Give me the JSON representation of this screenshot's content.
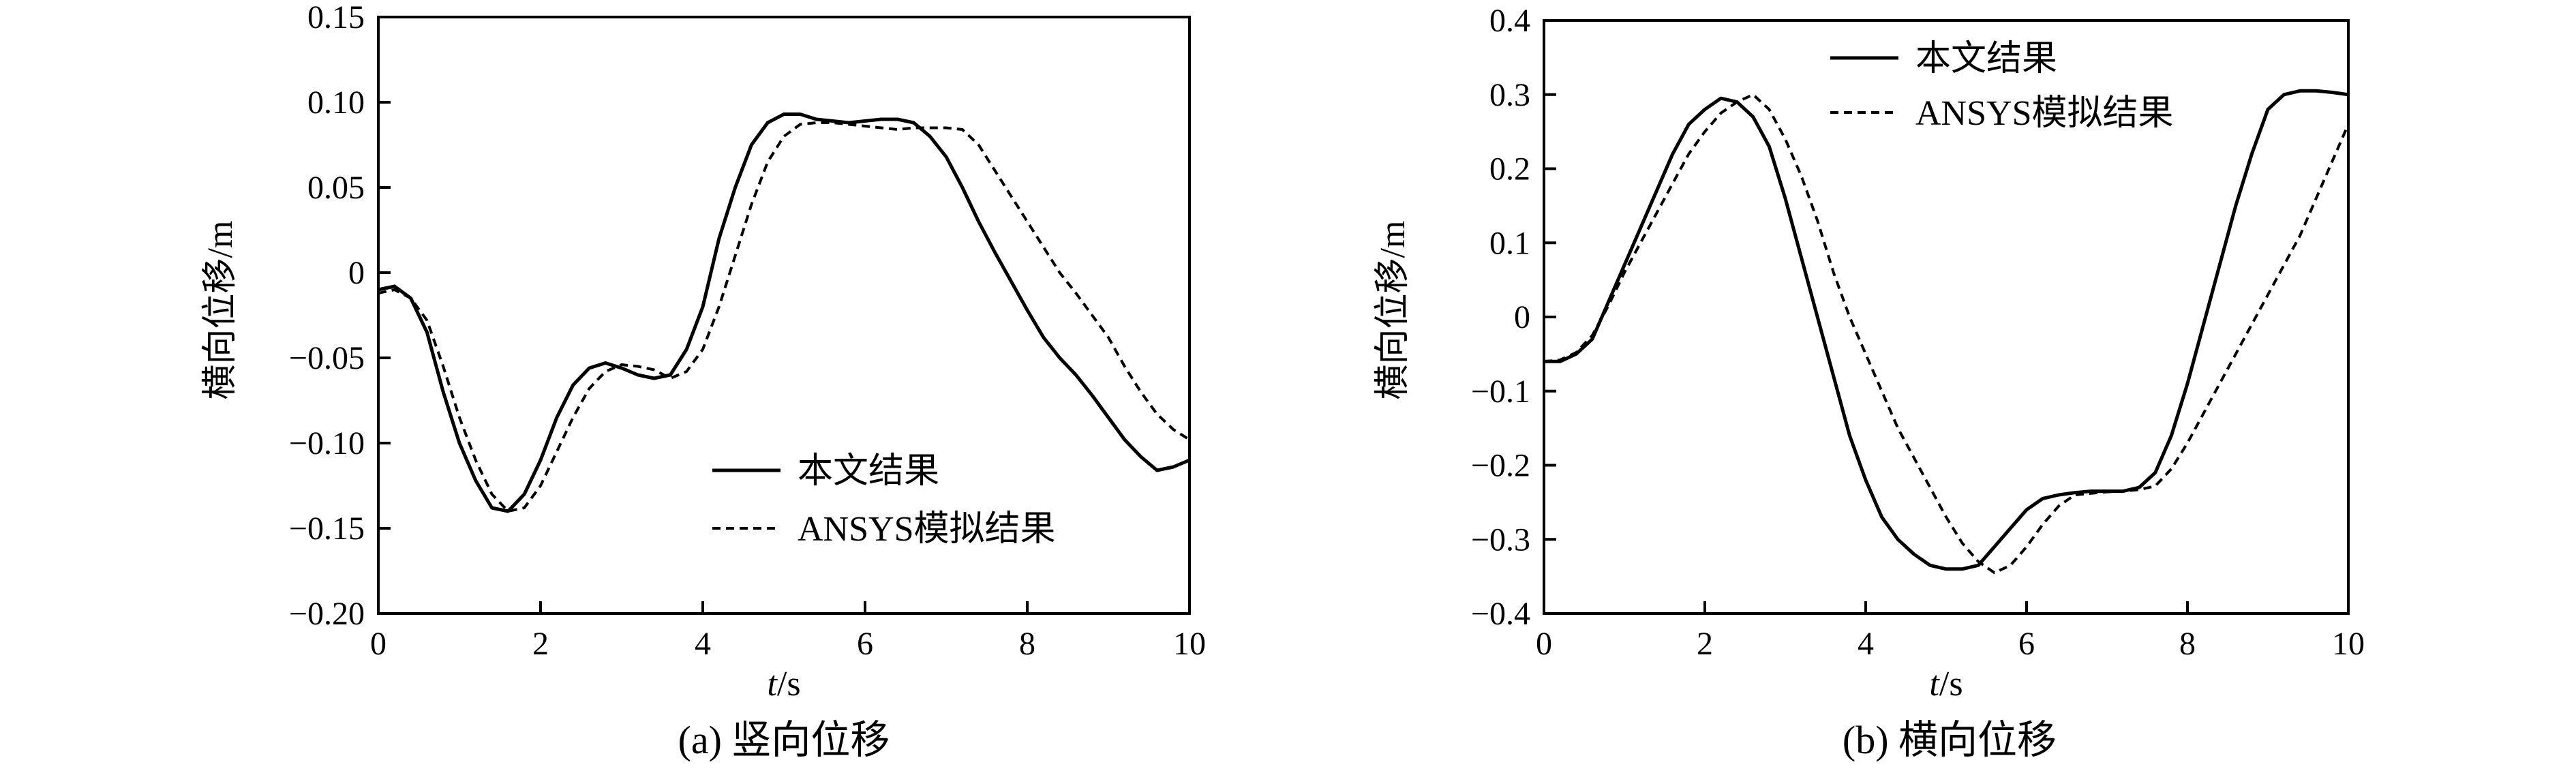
{
  "chart_data": [
    {
      "type": "line",
      "caption": "(a) 竖向位移",
      "xlabel_italic": "t",
      "xlabel_unit": "/s",
      "ylabel": "横向位移/m",
      "xlim": [
        0,
        10
      ],
      "ylim": [
        -0.2,
        0.15
      ],
      "xticks": [
        0,
        2,
        4,
        6,
        8,
        10
      ],
      "xtick_labels": [
        "0",
        "2",
        "4",
        "6",
        "8",
        "10"
      ],
      "yticks": [
        0.15,
        0.1,
        0.05,
        0,
        -0.05,
        -0.1,
        -0.15,
        -0.2
      ],
      "ytick_labels": [
        "0.15",
        "0.10",
        "0.05",
        "0",
        "−0.05",
        "−0.10",
        "−0.15",
        "−0.20"
      ],
      "legend_position": "lower-right",
      "series": [
        {
          "name": "本文结果",
          "style": "solid",
          "x": [
            0,
            0.2,
            0.4,
            0.6,
            0.8,
            1.0,
            1.2,
            1.4,
            1.6,
            1.8,
            2.0,
            2.2,
            2.4,
            2.6,
            2.8,
            3.0,
            3.2,
            3.4,
            3.6,
            3.8,
            4.0,
            4.2,
            4.4,
            4.6,
            4.8,
            5.0,
            5.2,
            5.4,
            5.6,
            5.8,
            6.0,
            6.2,
            6.4,
            6.6,
            6.8,
            7.0,
            7.2,
            7.4,
            7.6,
            7.8,
            8.0,
            8.2,
            8.4,
            8.6,
            8.8,
            9.0,
            9.2,
            9.4,
            9.6,
            9.8,
            10.0
          ],
          "y": [
            -0.01,
            -0.008,
            -0.015,
            -0.035,
            -0.07,
            -0.1,
            -0.122,
            -0.138,
            -0.14,
            -0.13,
            -0.11,
            -0.085,
            -0.066,
            -0.056,
            -0.053,
            -0.056,
            -0.06,
            -0.062,
            -0.06,
            -0.045,
            -0.02,
            0.02,
            0.05,
            0.075,
            0.088,
            0.093,
            0.093,
            0.09,
            0.089,
            0.088,
            0.089,
            0.09,
            0.09,
            0.088,
            0.08,
            0.068,
            0.05,
            0.03,
            0.012,
            -0.005,
            -0.022,
            -0.038,
            -0.05,
            -0.06,
            -0.072,
            -0.085,
            -0.098,
            -0.108,
            -0.116,
            -0.114,
            -0.11
          ]
        },
        {
          "name": "ANSYS模拟结果",
          "style": "dashed",
          "x": [
            0,
            0.2,
            0.4,
            0.6,
            0.8,
            1.0,
            1.2,
            1.4,
            1.6,
            1.8,
            2.0,
            2.2,
            2.4,
            2.6,
            2.8,
            3.0,
            3.2,
            3.4,
            3.6,
            3.8,
            4.0,
            4.2,
            4.4,
            4.6,
            4.8,
            5.0,
            5.2,
            5.4,
            5.6,
            5.8,
            6.0,
            6.2,
            6.4,
            6.6,
            6.8,
            7.0,
            7.2,
            7.4,
            7.6,
            7.8,
            8.0,
            8.2,
            8.4,
            8.6,
            8.8,
            9.0,
            9.2,
            9.4,
            9.6,
            9.8,
            10.0
          ],
          "y": [
            -0.012,
            -0.01,
            -0.015,
            -0.028,
            -0.055,
            -0.085,
            -0.11,
            -0.13,
            -0.14,
            -0.138,
            -0.125,
            -0.105,
            -0.085,
            -0.068,
            -0.058,
            -0.054,
            -0.055,
            -0.057,
            -0.062,
            -0.058,
            -0.045,
            -0.02,
            0.01,
            0.04,
            0.065,
            0.08,
            0.087,
            0.088,
            0.088,
            0.087,
            0.086,
            0.085,
            0.084,
            0.085,
            0.085,
            0.085,
            0.084,
            0.075,
            0.06,
            0.045,
            0.03,
            0.015,
            0.0,
            -0.012,
            -0.025,
            -0.038,
            -0.055,
            -0.07,
            -0.083,
            -0.092,
            -0.098
          ]
        }
      ]
    },
    {
      "type": "line",
      "caption": "(b) 横向位移",
      "xlabel_italic": "t",
      "xlabel_unit": "/s",
      "ylabel": "横向位移/m",
      "xlim": [
        0,
        10
      ],
      "ylim": [
        -0.4,
        0.4
      ],
      "xticks": [
        0,
        2,
        4,
        6,
        8,
        10
      ],
      "xtick_labels": [
        "0",
        "2",
        "4",
        "6",
        "8",
        "10"
      ],
      "yticks": [
        0.4,
        0.3,
        0.2,
        0.1,
        0,
        -0.1,
        -0.2,
        -0.3,
        -0.4
      ],
      "ytick_labels": [
        "0.4",
        "0.3",
        "0.2",
        "0.1",
        "0",
        "−0.1",
        "−0.2",
        "−0.3",
        "−0.4"
      ],
      "legend_position": "top-center",
      "series": [
        {
          "name": "本文结果",
          "style": "solid",
          "x": [
            0,
            0.2,
            0.4,
            0.6,
            0.8,
            1.0,
            1.2,
            1.4,
            1.6,
            1.8,
            2.0,
            2.2,
            2.4,
            2.6,
            2.8,
            3.0,
            3.2,
            3.4,
            3.6,
            3.8,
            4.0,
            4.2,
            4.4,
            4.6,
            4.8,
            5.0,
            5.2,
            5.4,
            5.6,
            5.8,
            6.0,
            6.2,
            6.4,
            6.6,
            6.8,
            7.0,
            7.2,
            7.4,
            7.6,
            7.8,
            8.0,
            8.2,
            8.4,
            8.6,
            8.8,
            9.0,
            9.2,
            9.4,
            9.6,
            9.8,
            10.0
          ],
          "y": [
            -0.06,
            -0.06,
            -0.05,
            -0.03,
            0.02,
            0.07,
            0.12,
            0.17,
            0.22,
            0.26,
            0.28,
            0.295,
            0.29,
            0.27,
            0.23,
            0.16,
            0.08,
            0.0,
            -0.08,
            -0.16,
            -0.22,
            -0.27,
            -0.3,
            -0.32,
            -0.335,
            -0.34,
            -0.34,
            -0.335,
            -0.31,
            -0.285,
            -0.26,
            -0.245,
            -0.24,
            -0.237,
            -0.235,
            -0.235,
            -0.235,
            -0.23,
            -0.21,
            -0.16,
            -0.09,
            -0.01,
            0.07,
            0.15,
            0.22,
            0.28,
            0.3,
            0.305,
            0.305,
            0.303,
            0.3
          ]
        },
        {
          "name": "ANSYS模拟结果",
          "style": "dashed",
          "x": [
            0,
            0.2,
            0.4,
            0.6,
            0.8,
            1.0,
            1.2,
            1.4,
            1.6,
            1.8,
            2.0,
            2.2,
            2.4,
            2.6,
            2.8,
            3.0,
            3.2,
            3.4,
            3.6,
            3.8,
            4.0,
            4.2,
            4.4,
            4.6,
            4.8,
            5.0,
            5.2,
            5.4,
            5.6,
            5.8,
            6.0,
            6.2,
            6.4,
            6.6,
            6.8,
            7.0,
            7.2,
            7.4,
            7.6,
            7.8,
            8.0,
            8.2,
            8.4,
            8.6,
            8.8,
            9.0,
            9.2,
            9.4,
            9.6,
            9.8,
            10.0
          ],
          "y": [
            -0.06,
            -0.058,
            -0.048,
            -0.025,
            0.015,
            0.06,
            0.1,
            0.14,
            0.18,
            0.22,
            0.25,
            0.275,
            0.29,
            0.3,
            0.28,
            0.24,
            0.19,
            0.13,
            0.06,
            0.0,
            -0.05,
            -0.1,
            -0.15,
            -0.19,
            -0.23,
            -0.27,
            -0.305,
            -0.33,
            -0.345,
            -0.335,
            -0.31,
            -0.28,
            -0.255,
            -0.24,
            -0.238,
            -0.236,
            -0.235,
            -0.233,
            -0.228,
            -0.205,
            -0.17,
            -0.13,
            -0.09,
            -0.05,
            -0.01,
            0.03,
            0.07,
            0.11,
            0.16,
            0.21,
            0.26
          ]
        }
      ]
    }
  ]
}
